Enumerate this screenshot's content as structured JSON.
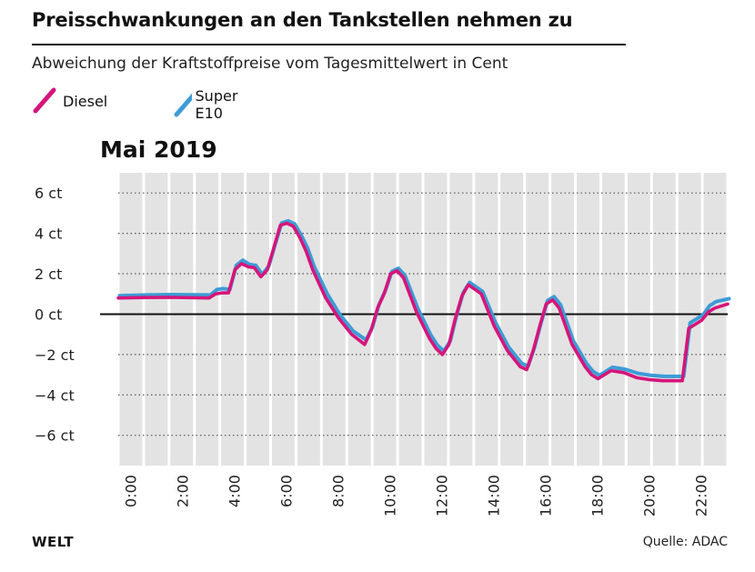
{
  "header": {
    "title": "Preisschwankungen an den Tankstellen nehmen zu",
    "subtitle": "Abweichung der Kraftstoffpreise vom Tagesmittelwert in Cent"
  },
  "legend": [
    {
      "label": "Diesel",
      "color": "#d6157a"
    },
    {
      "label": "Super E10",
      "color": "#3d9cd6"
    }
  ],
  "footer": {
    "brand": "WELT",
    "source": "Quelle: ADAC"
  },
  "chart_data": {
    "type": "line",
    "title": "Mai 2019",
    "xlabel": "",
    "ylabel": "",
    "xlim": [
      0,
      23.5
    ],
    "ylim": [
      -7.5,
      7
    ],
    "y_ticks": [
      6,
      4,
      2,
      0,
      -2,
      -4,
      -6
    ],
    "y_tick_labels": [
      "6 ct",
      "4 ct",
      "2 ct",
      "0 ct",
      "−2 ct",
      "−4 ct",
      "−6 ct"
    ],
    "x_tick_labels": [
      "0:00",
      "2:00",
      "4:00",
      "6:00",
      "8:00",
      "10:00",
      "12:00",
      "14:00",
      "16:00",
      "18:00",
      "20:00",
      "22:00"
    ],
    "x_tick_values": [
      0,
      2,
      4,
      6,
      8,
      10,
      12,
      14,
      16,
      18,
      20,
      22
    ],
    "grid": true,
    "zero_line": true,
    "series": [
      {
        "name": "Diesel",
        "color": "#d6157a",
        "x": [
          0,
          1,
          2,
          3.5,
          3.75,
          4.0,
          4.25,
          4.5,
          4.75,
          5.0,
          5.25,
          5.5,
          5.75,
          6.0,
          6.25,
          6.5,
          6.75,
          7.0,
          7.25,
          7.5,
          8.0,
          8.5,
          9.0,
          9.5,
          9.75,
          10.0,
          10.25,
          10.5,
          10.75,
          11.0,
          11.5,
          12.0,
          12.25,
          12.5,
          12.75,
          13.0,
          13.25,
          13.5,
          14.0,
          14.5,
          15.0,
          15.5,
          15.75,
          16.0,
          16.25,
          16.5,
          16.75,
          17.0,
          17.5,
          18.0,
          18.25,
          18.5,
          19.0,
          19.5,
          20.0,
          20.5,
          21.0,
          21.25,
          21.5,
          21.75,
          22.0,
          22.25,
          22.5,
          22.75,
          23.0,
          23.5
        ],
        "values": [
          0.8,
          0.82,
          0.83,
          0.8,
          1.0,
          1.05,
          1.05,
          2.2,
          2.5,
          2.35,
          2.3,
          1.85,
          2.2,
          3.3,
          4.4,
          4.5,
          4.35,
          3.8,
          3.1,
          2.2,
          0.8,
          -0.2,
          -1.0,
          -1.5,
          -0.8,
          0.3,
          1.0,
          2.0,
          2.15,
          1.8,
          0.1,
          -1.2,
          -1.7,
          -2.0,
          -1.5,
          -0.2,
          0.9,
          1.45,
          1.0,
          -0.6,
          -1.8,
          -2.6,
          -2.75,
          -1.8,
          -0.6,
          0.5,
          0.7,
          0.3,
          -1.5,
          -2.6,
          -3.0,
          -3.2,
          -2.8,
          -2.9,
          -3.15,
          -3.25,
          -3.3,
          -3.3,
          -3.3,
          -3.3,
          -0.7,
          -0.5,
          -0.3,
          0.1,
          0.3,
          0.5
        ]
      },
      {
        "name": "Super E10",
        "color": "#3d9cd6",
        "x": [
          0,
          1,
          2,
          3.5,
          3.75,
          4.0,
          4.25,
          4.5,
          4.75,
          5.0,
          5.25,
          5.5,
          5.75,
          6.0,
          6.25,
          6.5,
          6.75,
          7.0,
          7.25,
          7.5,
          8.0,
          8.5,
          9.0,
          9.5,
          9.75,
          10.0,
          10.25,
          10.5,
          10.75,
          11.0,
          11.5,
          12.0,
          12.25,
          12.5,
          12.75,
          13.0,
          13.25,
          13.5,
          14.0,
          14.5,
          15.0,
          15.5,
          15.75,
          16.0,
          16.25,
          16.5,
          16.75,
          17.0,
          17.5,
          18.0,
          18.25,
          18.5,
          19.0,
          19.5,
          20.0,
          20.5,
          21.0,
          21.25,
          21.5,
          21.75,
          22.0,
          22.25,
          22.5,
          22.75,
          23.0,
          23.5
        ],
        "values": [
          0.85,
          0.88,
          0.9,
          0.88,
          1.15,
          1.2,
          1.15,
          2.35,
          2.6,
          2.4,
          2.35,
          1.9,
          2.3,
          3.4,
          4.45,
          4.55,
          4.4,
          3.85,
          3.2,
          2.3,
          0.95,
          -0.1,
          -0.9,
          -1.35,
          -0.7,
          0.4,
          1.1,
          2.05,
          2.2,
          1.85,
          0.2,
          -1.1,
          -1.6,
          -1.9,
          -1.4,
          -0.1,
          1.0,
          1.5,
          1.05,
          -0.5,
          -1.7,
          -2.5,
          -2.65,
          -1.7,
          -0.5,
          0.6,
          0.8,
          0.4,
          -1.4,
          -2.5,
          -2.9,
          -3.1,
          -2.7,
          -2.8,
          -3.0,
          -3.1,
          -3.15,
          -3.15,
          -3.15,
          -3.15,
          -0.5,
          -0.3,
          -0.1,
          0.35,
          0.55,
          0.7
        ]
      }
    ]
  }
}
